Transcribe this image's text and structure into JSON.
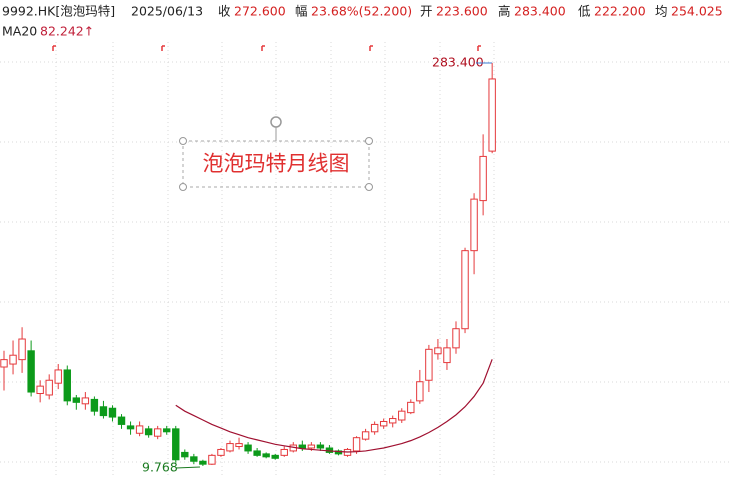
{
  "header": {
    "symbol": "9992.HK[泡泡玛特]",
    "date": "2025/06/13",
    "close_label": "收",
    "close": "272.600",
    "change_label": "幅",
    "change": "23.68%(52.200)",
    "open_label": "开",
    "open": "223.600",
    "high_label": "高",
    "high": "283.400",
    "low_label": "低",
    "low": "222.200",
    "avg_label": "均",
    "avg": "254.025",
    "ma_label": "MA20",
    "ma_value": "82.242↑"
  },
  "chart_data": {
    "type": "candlestick",
    "title": "泡泡玛特月线图",
    "high_annotation": "283.400",
    "low_annotation": "9.768",
    "ylim": [
      2.3,
      297.7
    ],
    "up_color": "#e5383b",
    "down_color": "#0c9a1a",
    "ma_color": "#a01030",
    "open": [
      77,
      79,
      82,
      88,
      59,
      58,
      66,
      75,
      56,
      52,
      55,
      50,
      49,
      43,
      37,
      32,
      35,
      30,
      35,
      35,
      19,
      16,
      13,
      11,
      17,
      20,
      23,
      24,
      20,
      18,
      17,
      17,
      20,
      24,
      22,
      24,
      22,
      20,
      17,
      20,
      28,
      33,
      37,
      39,
      41,
      46,
      54,
      68,
      86,
      80,
      90,
      103,
      156,
      190,
      223.6
    ],
    "high": [
      88,
      95,
      104,
      95,
      68,
      72,
      79,
      78,
      58,
      60,
      57,
      54,
      51,
      45,
      40,
      40,
      37,
      37,
      37,
      37,
      21,
      18,
      14,
      18,
      22,
      27,
      29,
      26,
      22,
      19,
      18,
      23,
      26,
      27,
      26,
      26,
      24,
      21,
      22,
      30,
      35,
      40,
      42,
      44,
      49,
      55,
      75,
      92,
      96,
      96,
      108,
      158,
      195,
      235,
      283.4
    ],
    "low": [
      61,
      72,
      73,
      57,
      53,
      55,
      62,
      51,
      48,
      48,
      44,
      42,
      40,
      35,
      31,
      30,
      29,
      28,
      31,
      12,
      14,
      11,
      9.768,
      10.5,
      16,
      19,
      21,
      18,
      16,
      15,
      14,
      16,
      19,
      20,
      20,
      20,
      18,
      17,
      16,
      18,
      27,
      31,
      35,
      36,
      39,
      45,
      52,
      60,
      82,
      75,
      86,
      100,
      140,
      180,
      222.2
    ],
    "close": [
      82,
      85,
      96,
      60,
      64,
      68,
      75,
      54,
      53,
      56,
      47,
      44,
      43,
      38,
      35,
      37,
      31,
      35,
      33,
      14,
      16,
      13,
      11,
      17,
      21,
      25,
      25,
      20,
      17,
      16,
      15,
      21,
      24,
      22,
      24,
      22,
      19,
      18,
      21,
      29,
      33,
      38,
      40,
      42,
      47,
      53,
      67,
      89,
      90,
      90,
      103,
      156,
      191,
      220,
      272.6
    ],
    "ma20": [
      null,
      null,
      null,
      null,
      null,
      null,
      null,
      null,
      null,
      null,
      null,
      null,
      null,
      null,
      null,
      null,
      null,
      null,
      null,
      51,
      47,
      44,
      41,
      38,
      35.5,
      33,
      31,
      29,
      27.5,
      26,
      24.5,
      23.5,
      22.5,
      21.5,
      21,
      20.5,
      20,
      19.6,
      19.3,
      19.5,
      20,
      21,
      22,
      23.5,
      25,
      27,
      29.5,
      32.5,
      36,
      40,
      44.5,
      50,
      57,
      66,
      82.242
    ]
  }
}
